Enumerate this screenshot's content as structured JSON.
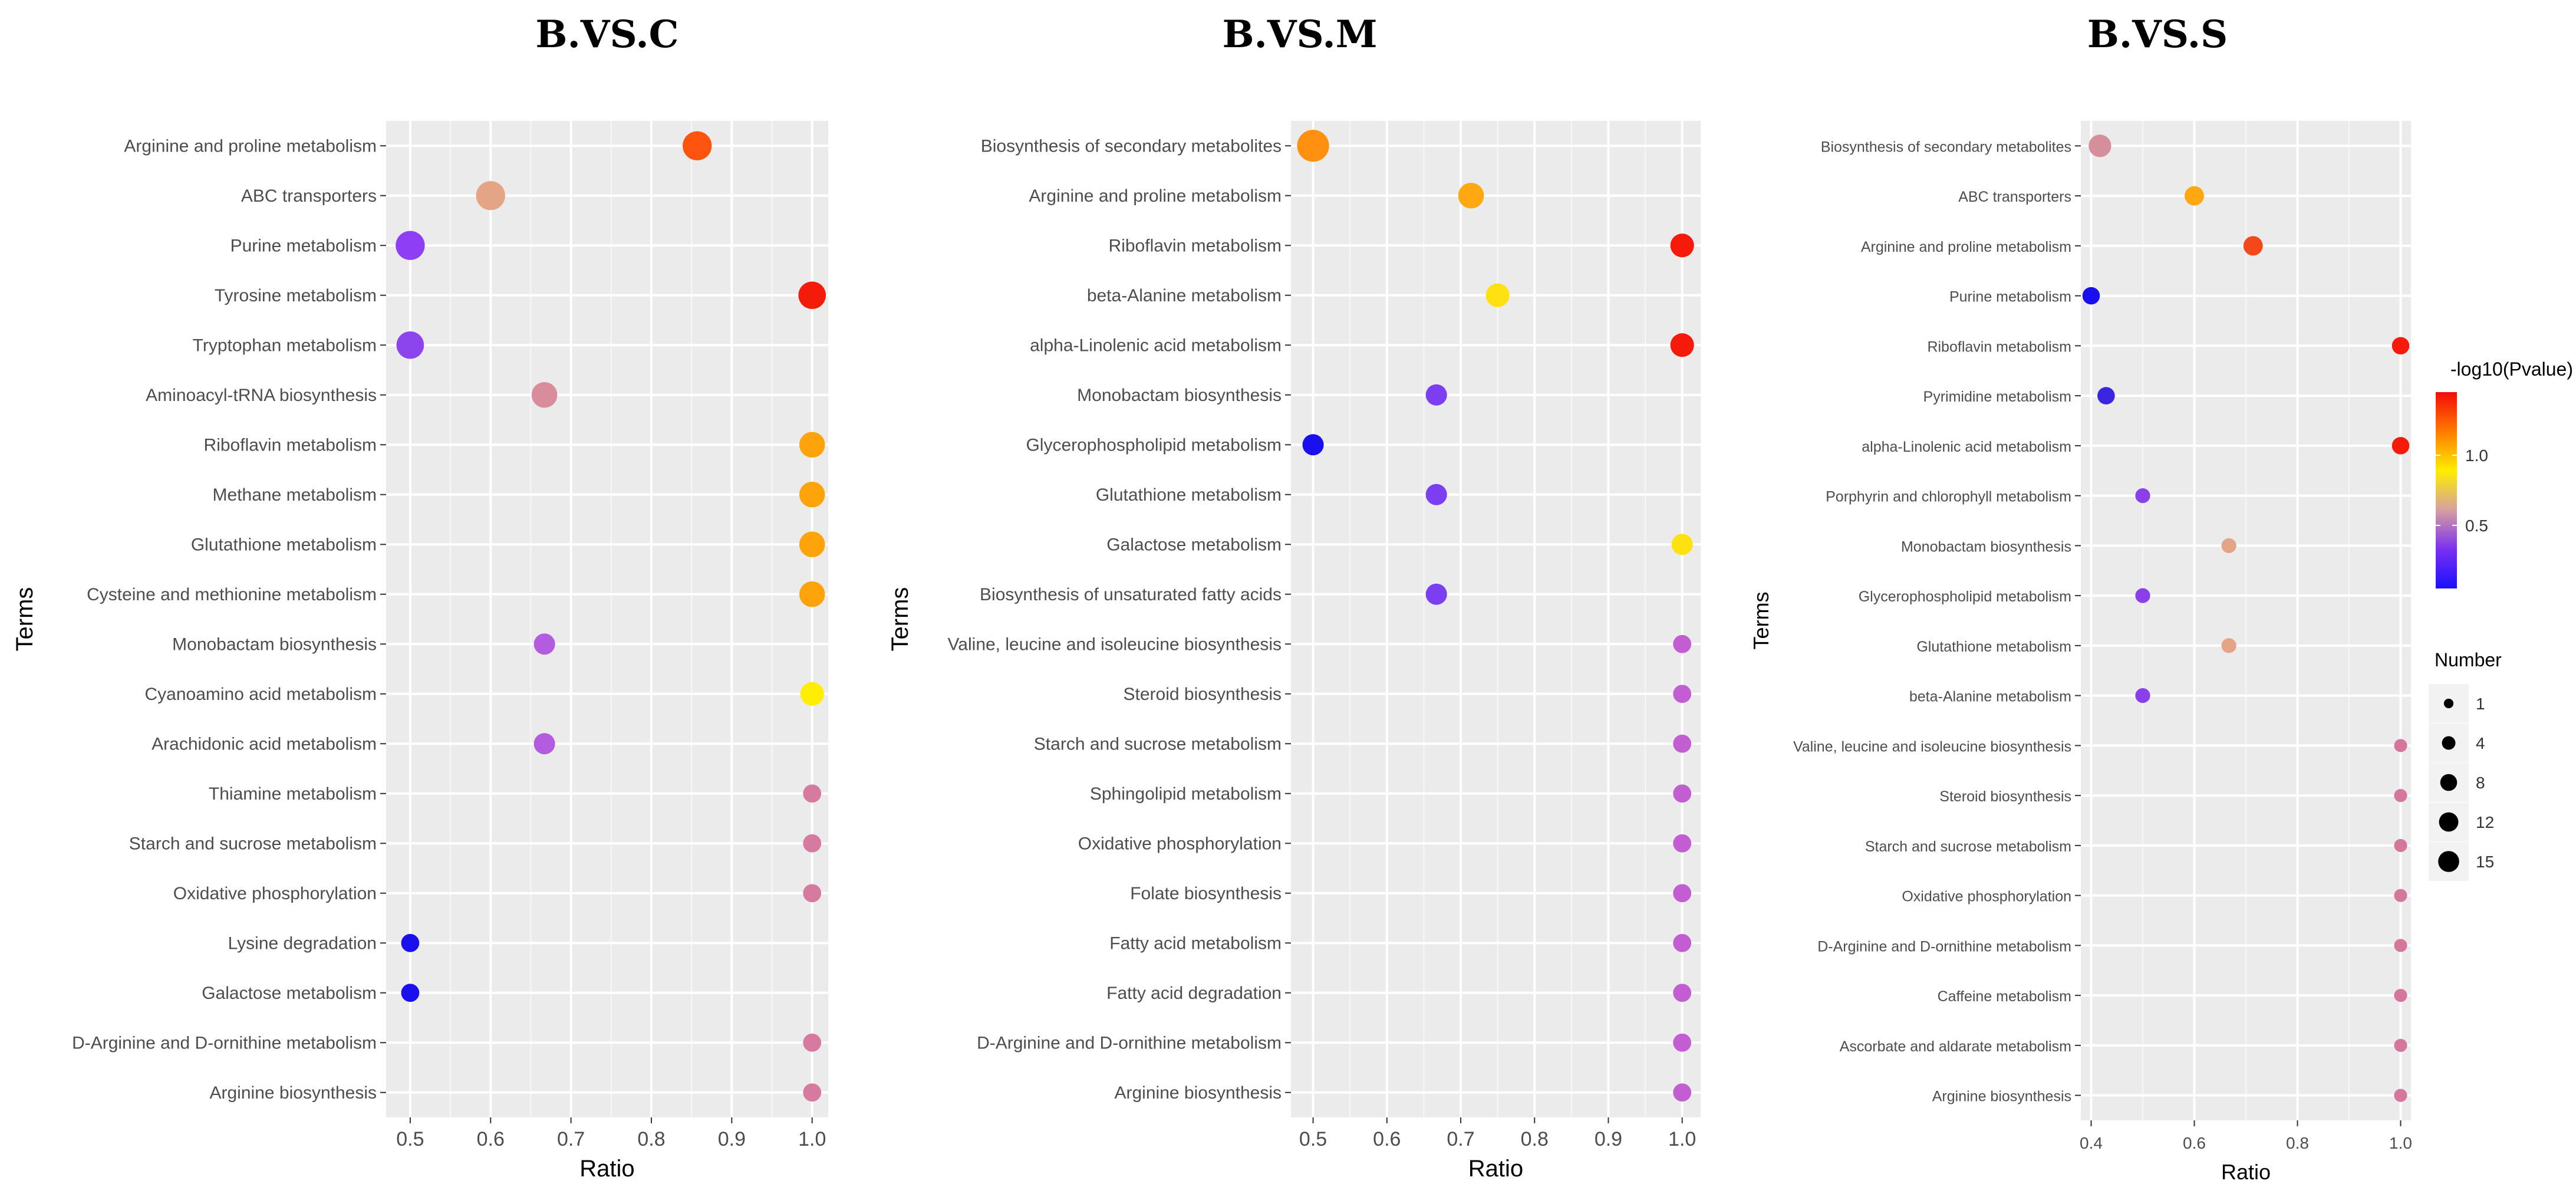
{
  "chart_data": [
    {
      "type": "scatter",
      "title": "B.VS.C",
      "xlabel": "Ratio",
      "ylabel": "Terms",
      "xlim": [
        0.47,
        1.02
      ],
      "xticks": [
        "0.5",
        "0.6",
        "0.7",
        "0.8",
        "0.9",
        "1.0"
      ],
      "points": [
        {
          "term": "Arginine and proline metabolism",
          "ratio": 0.857,
          "number": 6,
          "color": "#ff5310"
        },
        {
          "term": "ABC transporters",
          "ratio": 0.6,
          "number": 6,
          "color": "#e3a585"
        },
        {
          "term": "Purine metabolism",
          "ratio": 0.5,
          "number": 6,
          "color": "#8e3ff5"
        },
        {
          "term": "Tyrosine metabolism",
          "ratio": 1.0,
          "number": 5,
          "color": "#f51b0a"
        },
        {
          "term": "Tryptophan metabolism",
          "ratio": 0.5,
          "number": 5,
          "color": "#8c45ec"
        },
        {
          "term": "Aminoacyl-tRNA biosynthesis",
          "ratio": 0.667,
          "number": 4,
          "color": "#d98c9c"
        },
        {
          "term": "Riboflavin metabolism",
          "ratio": 1.0,
          "number": 4,
          "color": "#ffa30a"
        },
        {
          "term": "Methane metabolism",
          "ratio": 1.0,
          "number": 4,
          "color": "#ffa30a"
        },
        {
          "term": "Glutathione metabolism",
          "ratio": 1.0,
          "number": 4,
          "color": "#ffa30a"
        },
        {
          "term": "Cysteine and methionine metabolism",
          "ratio": 1.0,
          "number": 4,
          "color": "#ffa30a"
        },
        {
          "term": "Monobactam biosynthesis",
          "ratio": 0.667,
          "number": 2,
          "color": "#b35ce0"
        },
        {
          "term": "Cyanoamino acid metabolism",
          "ratio": 1.0,
          "number": 3,
          "color": "#ffee00"
        },
        {
          "term": "Arachidonic acid metabolism",
          "ratio": 0.667,
          "number": 2,
          "color": "#b35ce0"
        },
        {
          "term": "Thiamine metabolism",
          "ratio": 1.0,
          "number": 1,
          "color": "#d67aa0"
        },
        {
          "term": "Starch and sucrose metabolism",
          "ratio": 1.0,
          "number": 1,
          "color": "#d67aa0"
        },
        {
          "term": "Oxidative phosphorylation",
          "ratio": 1.0,
          "number": 1,
          "color": "#d67aa0"
        },
        {
          "term": "Lysine degradation",
          "ratio": 0.5,
          "number": 1,
          "color": "#1a10ee"
        },
        {
          "term": "Galactose metabolism",
          "ratio": 0.5,
          "number": 1,
          "color": "#1a10ee"
        },
        {
          "term": "D-Arginine and D-ornithine metabolism",
          "ratio": 1.0,
          "number": 1,
          "color": "#d67aa0"
        },
        {
          "term": "Arginine biosynthesis",
          "ratio": 1.0,
          "number": 1,
          "color": "#d67aa0"
        }
      ]
    },
    {
      "type": "scatter",
      "title": "B.VS.M",
      "xlabel": "Ratio",
      "ylabel": "Terms",
      "xlim": [
        0.47,
        1.025
      ],
      "xticks": [
        "0.5",
        "0.6",
        "0.7",
        "0.8",
        "0.9",
        "1.0"
      ],
      "points": [
        {
          "term": "Biosynthesis of secondary metabolites",
          "ratio": 0.5,
          "number": 8,
          "color": "#ff9010"
        },
        {
          "term": "Arginine and proline metabolism",
          "ratio": 0.714,
          "number": 4,
          "color": "#ffa812"
        },
        {
          "term": "Riboflavin metabolism",
          "ratio": 1.0,
          "number": 3,
          "color": "#f51a0a"
        },
        {
          "term": "beta-Alanine metabolism",
          "ratio": 0.75,
          "number": 3,
          "color": "#ffe010"
        },
        {
          "term": "alpha-Linolenic acid metabolism",
          "ratio": 1.0,
          "number": 3,
          "color": "#f51a0a"
        },
        {
          "term": "Monobactam biosynthesis",
          "ratio": 0.667,
          "number": 2,
          "color": "#7b3ef0"
        },
        {
          "term": "Glycerophospholipid metabolism",
          "ratio": 0.5,
          "number": 2,
          "color": "#1a10ee"
        },
        {
          "term": "Glutathione metabolism",
          "ratio": 0.667,
          "number": 2,
          "color": "#7b3ef0"
        },
        {
          "term": "Galactose metabolism",
          "ratio": 1.0,
          "number": 2,
          "color": "#ffe010"
        },
        {
          "term": "Biosynthesis of unsaturated fatty acids",
          "ratio": 0.667,
          "number": 2,
          "color": "#7b3ef0"
        },
        {
          "term": "Valine, leucine and isoleucine biosynthesis",
          "ratio": 1.0,
          "number": 1,
          "color": "#c25ed2"
        },
        {
          "term": "Steroid biosynthesis",
          "ratio": 1.0,
          "number": 1,
          "color": "#c25ed2"
        },
        {
          "term": "Starch and sucrose metabolism",
          "ratio": 1.0,
          "number": 1,
          "color": "#c25ed2"
        },
        {
          "term": "Sphingolipid metabolism",
          "ratio": 1.0,
          "number": 1,
          "color": "#c25ed2"
        },
        {
          "term": "Oxidative phosphorylation",
          "ratio": 1.0,
          "number": 1,
          "color": "#c25ed2"
        },
        {
          "term": "Folate biosynthesis",
          "ratio": 1.0,
          "number": 1,
          "color": "#c25ed2"
        },
        {
          "term": "Fatty acid metabolism",
          "ratio": 1.0,
          "number": 1,
          "color": "#c25ed2"
        },
        {
          "term": "Fatty acid degradation",
          "ratio": 1.0,
          "number": 1,
          "color": "#c25ed2"
        },
        {
          "term": "D-Arginine and D-ornithine metabolism",
          "ratio": 1.0,
          "number": 1,
          "color": "#c25ed2"
        },
        {
          "term": "Arginine biosynthesis",
          "ratio": 1.0,
          "number": 1,
          "color": "#c25ed2"
        }
      ]
    },
    {
      "type": "scatter",
      "title": "B.VS.S",
      "xlabel": "Ratio",
      "ylabel": "Terms",
      "xlim": [
        0.38,
        1.02
      ],
      "xticks": [
        "0.4",
        "0.6",
        "0.8",
        "1.0"
      ],
      "points": [
        {
          "term": "Biosynthesis of secondary metabolites",
          "ratio": 0.417,
          "number": 5,
          "color": "#d58f9c"
        },
        {
          "term": "ABC transporters",
          "ratio": 0.6,
          "number": 3,
          "color": "#ffa812"
        },
        {
          "term": "Arginine and proline metabolism",
          "ratio": 0.714,
          "number": 3,
          "color": "#f5481a"
        },
        {
          "term": "Purine metabolism",
          "ratio": 0.4,
          "number": 2,
          "color": "#1a10ee"
        },
        {
          "term": "Riboflavin metabolism",
          "ratio": 1.0,
          "number": 2,
          "color": "#f51a0a"
        },
        {
          "term": "Pyrimidine metabolism",
          "ratio": 0.429,
          "number": 2,
          "color": "#3a25e0"
        },
        {
          "term": "alpha-Linolenic acid metabolism",
          "ratio": 1.0,
          "number": 2,
          "color": "#f51a0a"
        },
        {
          "term": "Porphyrin and chlorophyll metabolism",
          "ratio": 0.5,
          "number": 1,
          "color": "#8a3fe8"
        },
        {
          "term": "Monobactam biosynthesis",
          "ratio": 0.667,
          "number": 1,
          "color": "#e3a585"
        },
        {
          "term": "Glycerophospholipid metabolism",
          "ratio": 0.5,
          "number": 1,
          "color": "#8a3fe8"
        },
        {
          "term": "Glutathione metabolism",
          "ratio": 0.667,
          "number": 1,
          "color": "#e3a585"
        },
        {
          "term": "beta-Alanine metabolism",
          "ratio": 0.5,
          "number": 1,
          "color": "#8a3fe8"
        },
        {
          "term": "Valine, leucine and isoleucine biosynthesis",
          "ratio": 1.0,
          "number": 0.5,
          "color": "#d5779c"
        },
        {
          "term": "Steroid biosynthesis",
          "ratio": 1.0,
          "number": 0.5,
          "color": "#d5779c"
        },
        {
          "term": "Starch and sucrose metabolism",
          "ratio": 1.0,
          "number": 0.5,
          "color": "#d5779c"
        },
        {
          "term": "Oxidative phosphorylation",
          "ratio": 1.0,
          "number": 0.5,
          "color": "#d5779c"
        },
        {
          "term": "D-Arginine and D-ornithine metabolism",
          "ratio": 1.0,
          "number": 0.5,
          "color": "#d5779c"
        },
        {
          "term": "Caffeine metabolism",
          "ratio": 1.0,
          "number": 0.5,
          "color": "#d5779c"
        },
        {
          "term": "Ascorbate and aldarate metabolism",
          "ratio": 1.0,
          "number": 0.5,
          "color": "#d5779c"
        },
        {
          "term": "Arginine biosynthesis",
          "ratio": 1.0,
          "number": 0.5,
          "color": "#d5779c"
        }
      ]
    }
  ],
  "legend": {
    "color_title": "-log10(Pvalue)",
    "color_ticks": [
      {
        "label": "1.0",
        "value": 1.0
      },
      {
        "label": "0.5",
        "value": 0.5
      }
    ],
    "color_range": [
      0.05,
      1.45
    ],
    "gradient": [
      "#f50a0a",
      "#ff7a00",
      "#ffee00",
      "#d6a0a0",
      "#7b30f0",
      "#1a10ff"
    ],
    "size_title": "Number",
    "size_entries": [
      {
        "label": "1",
        "value": 1
      },
      {
        "label": "4",
        "value": 4
      },
      {
        "label": "8",
        "value": 8
      },
      {
        "label": "12",
        "value": 12
      },
      {
        "label": "15",
        "value": 15
      }
    ]
  }
}
